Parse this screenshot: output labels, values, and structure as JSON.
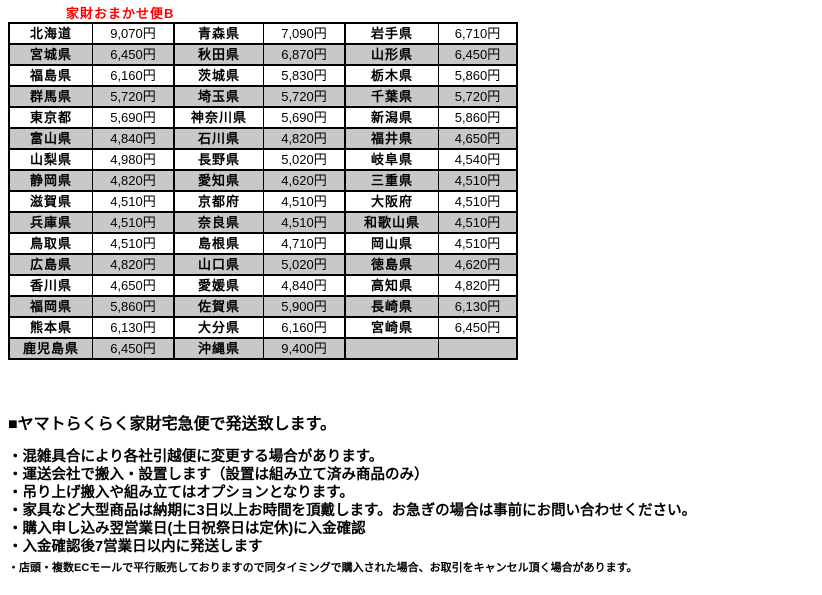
{
  "title": "家財おまかせ便B",
  "table": {
    "rows": [
      [
        "北海道",
        "9,070円",
        "青森県",
        "7,090円",
        "岩手県",
        "6,710円"
      ],
      [
        "宮城県",
        "6,450円",
        "秋田県",
        "6,870円",
        "山形県",
        "6,450円"
      ],
      [
        "福島県",
        "6,160円",
        "茨城県",
        "5,830円",
        "栃木県",
        "5,860円"
      ],
      [
        "群馬県",
        "5,720円",
        "埼玉県",
        "5,720円",
        "千葉県",
        "5,720円"
      ],
      [
        "東京都",
        "5,690円",
        "神奈川県",
        "5,690円",
        "新潟県",
        "5,860円"
      ],
      [
        "富山県",
        "4,840円",
        "石川県",
        "4,820円",
        "福井県",
        "4,650円"
      ],
      [
        "山梨県",
        "4,980円",
        "長野県",
        "5,020円",
        "岐阜県",
        "4,540円"
      ],
      [
        "静岡県",
        "4,820円",
        "愛知県",
        "4,620円",
        "三重県",
        "4,510円"
      ],
      [
        "滋賀県",
        "4,510円",
        "京都府",
        "4,510円",
        "大阪府",
        "4,510円"
      ],
      [
        "兵庫県",
        "4,510円",
        "奈良県",
        "4,510円",
        "和歌山県",
        "4,510円"
      ],
      [
        "鳥取県",
        "4,510円",
        "島根県",
        "4,710円",
        "岡山県",
        "4,510円"
      ],
      [
        "広島県",
        "4,820円",
        "山口県",
        "5,020円",
        "徳島県",
        "4,620円"
      ],
      [
        "香川県",
        "4,650円",
        "愛媛県",
        "4,840円",
        "高知県",
        "4,820円"
      ],
      [
        "福岡県",
        "5,860円",
        "佐賀県",
        "5,900円",
        "長崎県",
        "6,130円"
      ],
      [
        "熊本県",
        "6,130円",
        "大分県",
        "6,160円",
        "宮崎県",
        "6,450円"
      ],
      [
        "鹿児島県",
        "6,450円",
        "沖縄県",
        "9,400円",
        "",
        ""
      ]
    ]
  },
  "notes": {
    "heading": "■ヤマトらくらく家財宅急便で発送致します。",
    "bullets": [
      "・混雑具合により各社引越便に変更する場合があります。",
      "・運送会社で搬入・設置します（設置は組み立て済み商品のみ）",
      "・吊り上げ搬入や組み立てはオプションとなります。",
      "・家具など大型商品は納期に3日以上お時間を頂戴します。お急ぎの場合は事前にお問い合わせください。",
      "・購入申し込み翌営業日(土日祝祭日は定休)に入金確認",
      "・入金確認後7営業日以内に発送します"
    ],
    "small_note": "・店頭・複数ECモールで平行販売しておりますので同タイミングで購入された場合、お取引をキャンセル頂く場合があります。"
  },
  "colors": {
    "title_red": "#ff0000",
    "row_alt_gray": "#c8c8c8",
    "border_black": "#000000",
    "background": "#ffffff"
  }
}
